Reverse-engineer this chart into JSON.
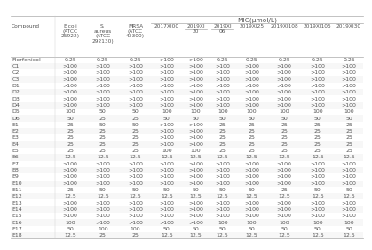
{
  "title": "MIC(μmol/L)",
  "col_headers": [
    "Compound",
    "E.coli\n(ATCC\n25922)",
    "S.\naureus\n(ATCC\n292130)",
    "MRSA\n(ATCC\n43300)",
    "2017XJ00",
    "2019XJ\n20",
    "2019XJ\n06",
    "2019XJ25",
    "2019XJ108",
    "2019XJ105",
    "2019XJ30"
  ],
  "mic_underline_cols": [
    5,
    6
  ],
  "rows": [
    [
      "Florfenicol",
      "0.25",
      "0.25",
      "0.25",
      ">100",
      ">100",
      "0.25",
      "0.25",
      "0.25",
      "0.25",
      "0.25"
    ],
    [
      "C1",
      ">100",
      ">100",
      ">100",
      ">100",
      ">100",
      ">100",
      ">100",
      ">100",
      ">100",
      ">100"
    ],
    [
      "C2",
      ">100",
      ">100",
      ">100",
      ">100",
      ">100",
      ">100",
      ">100",
      ">100",
      ">100",
      ">100"
    ],
    [
      "C3",
      ">100",
      ">100",
      ">100",
      ">100",
      ">100",
      ">100",
      ">100",
      ">100",
      ">100",
      ">100"
    ],
    [
      "D1",
      ">100",
      ">100",
      ">100",
      ">100",
      ">100",
      ">100",
      ">100",
      ">100",
      ">100",
      ">100"
    ],
    [
      "D2",
      ">100",
      ">100",
      ">100",
      ">100",
      ">100",
      ">100",
      ">100",
      ">100",
      ">100",
      ">100"
    ],
    [
      "D3",
      ">100",
      ">100",
      ">100",
      ">100",
      ">100",
      ">100",
      ">100",
      ">100",
      ">100",
      ">100"
    ],
    [
      "D4",
      ">100",
      ">100",
      ">100",
      ">100",
      ">100",
      ">100",
      ">100",
      ">100",
      ">100",
      ">100"
    ],
    [
      "D5",
      "100",
      "50",
      "50",
      "100",
      "100",
      "100",
      "100",
      "100",
      "100",
      "100"
    ],
    [
      "D6",
      "50",
      "25",
      "25",
      "50",
      "50",
      "50",
      "50",
      "50",
      "50",
      "50"
    ],
    [
      "E1",
      "25",
      "50",
      "50",
      ">100",
      ">100",
      "25",
      "25",
      "25",
      "25",
      "25"
    ],
    [
      "E2",
      "25",
      "25",
      "25",
      ">100",
      ">100",
      "25",
      "25",
      "25",
      "25",
      "25"
    ],
    [
      "E3",
      "25",
      "25",
      "25",
      ">100",
      ">100",
      "25",
      "25",
      "25",
      "25",
      "25"
    ],
    [
      "E4",
      "25",
      "25",
      "25",
      ">100",
      ">100",
      "25",
      "25",
      "25",
      "25",
      "25"
    ],
    [
      "E5",
      "25",
      "25",
      "25",
      "100",
      "100",
      "25",
      "25",
      "25",
      "25",
      "25"
    ],
    [
      "E6",
      "12.5",
      "12.5",
      "12.5",
      "12.5",
      "12.5",
      "12.5",
      "12.5",
      "12.5",
      "12.5",
      "12.5"
    ],
    [
      "E7",
      ">100",
      ">100",
      ">100",
      ">100",
      ">100",
      ">100",
      ">100",
      ">100",
      ">100",
      ">100"
    ],
    [
      "E8",
      ">100",
      ">100",
      ">100",
      ">100",
      ">100",
      ">100",
      ">100",
      ">100",
      ">100",
      ">100"
    ],
    [
      "E9",
      ">100",
      ">100",
      ">100",
      ">100",
      ">100",
      ">100",
      ">100",
      ">100",
      ">100",
      ">100"
    ],
    [
      "E10",
      ">100",
      ">100",
      ">100",
      ">100",
      ">100",
      ">100",
      ">100",
      ">100",
      ">100",
      ">100"
    ],
    [
      "E11",
      "25",
      "50",
      "50",
      "50",
      "50",
      "50",
      "50",
      "25",
      "50",
      "50"
    ],
    [
      "E12",
      "12.5",
      "12.5",
      "12.5",
      "12.5",
      "12.5",
      "12.5",
      "12.5",
      "12.5",
      "12.5",
      "12.5"
    ],
    [
      "E13",
      ">100",
      ">100",
      ">100",
      ">100",
      ">100",
      ">100",
      ">100",
      ">100",
      ">100",
      ">100"
    ],
    [
      "E14",
      ">100",
      ">100",
      ">100",
      ">100",
      ">100",
      ">100",
      ">100",
      ">100",
      ">100",
      ">100"
    ],
    [
      "E15",
      ">100",
      ">100",
      ">100",
      ">100",
      ">100",
      ">100",
      ">100",
      ">100",
      ">100",
      ">100"
    ],
    [
      "E16",
      "100",
      ">100",
      ">100",
      ">100",
      ">100",
      "100",
      "100",
      "100",
      "100",
      "100"
    ],
    [
      "E17",
      "50",
      "100",
      "100",
      "50",
      "50",
      "50",
      "50",
      "50",
      "50",
      "50"
    ],
    [
      "E18",
      "12.5",
      "25",
      "25",
      "12.5",
      "12.5",
      "12.5",
      "12.5",
      "12.5",
      "12.5",
      "12.5"
    ]
  ],
  "bg_color": "#ffffff",
  "text_color": "#555555",
  "header_text_color": "#555555",
  "font_size": 4.5,
  "header_font_size": 4.2,
  "col_widths_raw": [
    1.15,
    0.82,
    0.88,
    0.82,
    0.82,
    0.7,
    0.7,
    0.82,
    0.88,
    0.88,
    0.75
  ]
}
